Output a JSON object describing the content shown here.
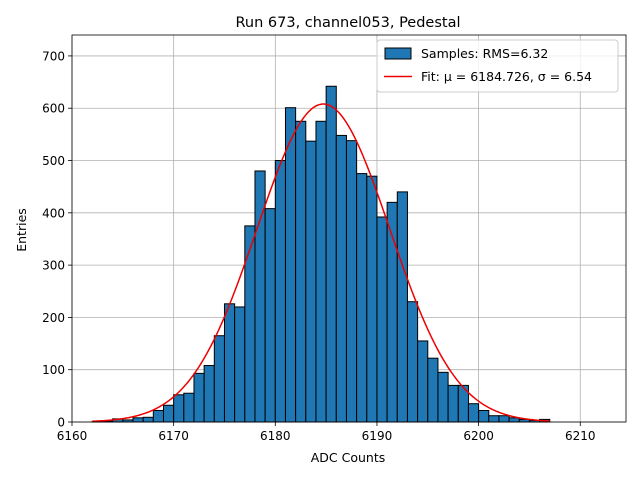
{
  "chart_data": {
    "type": "bar",
    "title": "Run 673, channel053, Pedestal",
    "xlabel": "ADC Counts",
    "ylabel": "Entries",
    "xlim": [
      6160,
      6214.5
    ],
    "ylim": [
      0,
      740
    ],
    "xticks": [
      6160,
      6170,
      6180,
      6190,
      6200,
      6210
    ],
    "yticks": [
      0,
      100,
      200,
      300,
      400,
      500,
      600,
      700
    ],
    "grid": true,
    "legend_placement": "top-right",
    "bin_width": 1,
    "bin_left_edges": [
      6162,
      6163,
      6164,
      6165,
      6166,
      6167,
      6168,
      6169,
      6170,
      6171,
      6172,
      6173,
      6174,
      6175,
      6176,
      6177,
      6178,
      6179,
      6180,
      6181,
      6182,
      6183,
      6184,
      6185,
      6186,
      6187,
      6188,
      6189,
      6190,
      6191,
      6192,
      6193,
      6194,
      6195,
      6196,
      6197,
      6198,
      6199,
      6200,
      6201,
      6202,
      6203,
      6204,
      6205,
      6206
    ],
    "values": [
      1,
      2,
      6,
      4,
      8,
      9,
      22,
      32,
      52,
      55,
      93,
      108,
      165,
      226,
      220,
      375,
      480,
      408,
      500,
      601,
      575,
      537,
      575,
      642,
      548,
      538,
      475,
      470,
      392,
      420,
      440,
      230,
      155,
      122,
      95,
      70,
      70,
      35,
      22,
      12,
      12,
      8,
      5,
      3,
      5
    ],
    "series": [
      {
        "name": "Samples: RMS=6.32",
        "type": "histogram",
        "color": "#1f77b4",
        "edgecolor": "#000000"
      },
      {
        "name": "Fit: μ = 6184.726, σ = 6.54",
        "type": "line",
        "color": "#ee0000",
        "mu": 6184.726,
        "sigma": 6.54,
        "amplitude": 608,
        "x_range": [
          6162,
          6207
        ]
      }
    ]
  }
}
